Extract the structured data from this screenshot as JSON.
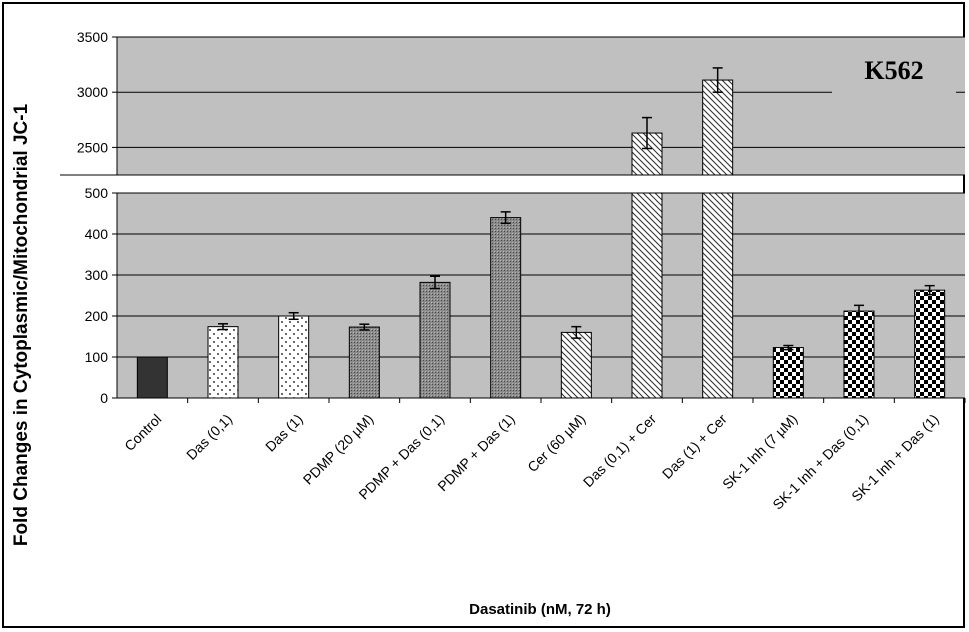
{
  "chart_data": {
    "type": "bar",
    "ylabel": "Fold Changes in Cytoplasmic/Mitochondrial JC-1",
    "xlabel": "Dasatinib (nM, 72 h)",
    "annotation": "K562",
    "broken_axis": true,
    "ylim_lower": [
      0,
      500
    ],
    "ylim_upper": [
      2250,
      3500
    ],
    "yticks_lower": [
      "0",
      "100",
      "200",
      "300",
      "400",
      "500"
    ],
    "yticks_upper": [
      "2500",
      "3000",
      "3500"
    ],
    "grid": true,
    "categories": [
      "Control",
      "Das (0,1)",
      "Das (1)",
      "PDMP (20 µM)",
      "PDMP + Das (0,1)",
      "PDMP + Das (1)",
      "Cer (60 µM)",
      "Das (0,1) + Cer",
      "Das (1) + Cer",
      "SK-1 Inh (7 µM)",
      "SK-1 Inh + Das (0,1)",
      "SK-1 Inh + Das (1)"
    ],
    "values": [
      100,
      174,
      200,
      173,
      282,
      440,
      160,
      2630,
      3110,
      123,
      212,
      263
    ],
    "errors": [
      0,
      7,
      8,
      7,
      15,
      14,
      14,
      140,
      110,
      5,
      14,
      11
    ],
    "patterns": [
      "solid",
      "dots",
      "dots",
      "dense",
      "dense",
      "dense",
      "diag",
      "diag",
      "diag",
      "checker",
      "checker",
      "checker"
    ],
    "colors": {
      "plot_bg": "#c0c0c0",
      "bar_solid": "#333333",
      "bar_dense": "#808080",
      "grid": "#000000"
    }
  }
}
